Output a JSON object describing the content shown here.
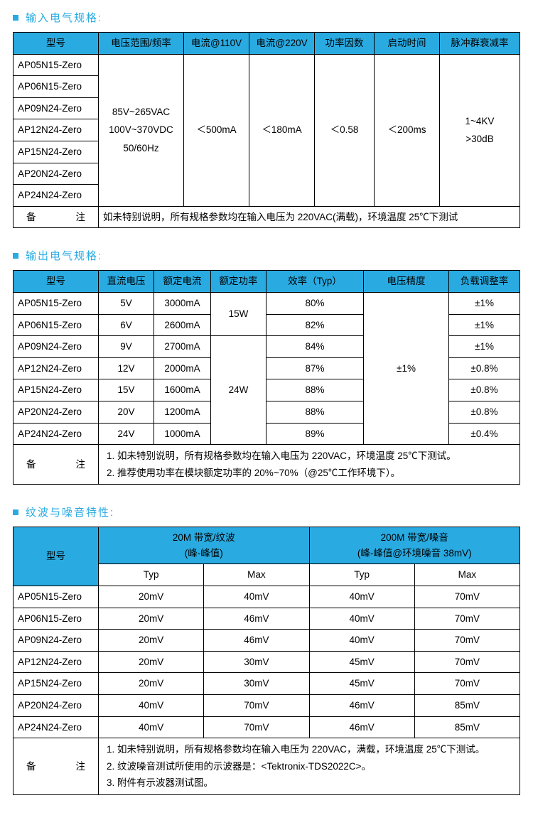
{
  "colors": {
    "accent": "#29abe2",
    "border": "#000000",
    "bg": "#ffffff"
  },
  "sections": {
    "input": {
      "title": "输入电气规格:",
      "headers": [
        "型号",
        "电压范围/频率",
        "电流@110V",
        "电流@220V",
        "功率因数",
        "启动时间",
        "脉冲群衰减率"
      ],
      "models": [
        "AP05N15-Zero",
        "AP06N15-Zero",
        "AP09N24-Zero",
        "AP12N24-Zero",
        "AP15N24-Zero",
        "AP20N24-Zero",
        "AP24N24-Zero"
      ],
      "voltage_range_l1": "85V~265VAC",
      "voltage_range_l2": "100V~370VDC",
      "voltage_range_l3": "50/60Hz",
      "cur110": "＜500mA",
      "cur220": "＜180mA",
      "pf": "＜0.58",
      "startup": "＜200ms",
      "burst_l1": "1~4KV",
      "burst_l2": ">30dB",
      "note_label": "备注",
      "note_text": "如未特别说明，所有规格参数均在输入电压为 220VAC(满载)，环境温度 25℃下测试"
    },
    "output": {
      "title": "输出电气规格:",
      "headers": [
        "型号",
        "直流电压",
        "额定电流",
        "额定功率",
        "效率（Typ）",
        "电压精度",
        "负载调整率"
      ],
      "rows": [
        {
          "model": "AP05N15-Zero",
          "dc": "5V",
          "cur": "3000mA",
          "eff": "80%",
          "load": "±1%"
        },
        {
          "model": "AP06N15-Zero",
          "dc": "6V",
          "cur": "2600mA",
          "eff": "82%",
          "load": "±1%"
        },
        {
          "model": "AP09N24-Zero",
          "dc": "9V",
          "cur": "2700mA",
          "eff": "84%",
          "load": "±1%"
        },
        {
          "model": "AP12N24-Zero",
          "dc": "12V",
          "cur": "2000mA",
          "eff": "87%",
          "load": "±0.8%"
        },
        {
          "model": "AP15N24-Zero",
          "dc": "15V",
          "cur": "1600mA",
          "eff": "88%",
          "load": "±0.8%"
        },
        {
          "model": "AP20N24-Zero",
          "dc": "20V",
          "cur": "1200mA",
          "eff": "88%",
          "load": "±0.8%"
        },
        {
          "model": "AP24N24-Zero",
          "dc": "24V",
          "cur": "1000mA",
          "eff": "89%",
          "load": "±0.4%"
        }
      ],
      "rated_power_1": "15W",
      "rated_power_2": "24W",
      "v_accuracy": "±1%",
      "note_label": "备注",
      "note1": "如未特别说明，所有规格参数均在输入电压为 220VAC，环境温度 25℃下测试。",
      "note2": "推荐使用功率在模块额定功率的 20%~70%（@25℃工作环境下）。"
    },
    "ripple": {
      "title": "纹波与噪音特性:",
      "h_model": "型号",
      "h_20m_l1": "20M 带宽/纹波",
      "h_20m_l2": "(峰-峰值)",
      "h_200m_l1": "200M 带宽/噪音",
      "h_200m_l2": "(峰-峰值@环境噪音 38mV)",
      "sub_typ": "Typ",
      "sub_max": "Max",
      "rows": [
        {
          "model": "AP05N15-Zero",
          "t20": "20mV",
          "m20": "40mV",
          "t200": "40mV",
          "m200": "70mV"
        },
        {
          "model": "AP06N15-Zero",
          "t20": "20mV",
          "m20": "46mV",
          "t200": "40mV",
          "m200": "70mV"
        },
        {
          "model": "AP09N24-Zero",
          "t20": "20mV",
          "m20": "46mV",
          "t200": "40mV",
          "m200": "70mV"
        },
        {
          "model": "AP12N24-Zero",
          "t20": "20mV",
          "m20": "30mV",
          "t200": "45mV",
          "m200": "70mV"
        },
        {
          "model": "AP15N24-Zero",
          "t20": "20mV",
          "m20": "30mV",
          "t200": "45mV",
          "m200": "70mV"
        },
        {
          "model": "AP20N24-Zero",
          "t20": "40mV",
          "m20": "70mV",
          "t200": "46mV",
          "m200": "85mV"
        },
        {
          "model": "AP24N24-Zero",
          "t20": "40mV",
          "m20": "70mV",
          "t200": "46mV",
          "m200": "85mV"
        }
      ],
      "note_label": "备注",
      "note1": "如未特别说明，所有规格参数均在输入电压为 220VAC，满载，环境温度 25℃下测试。",
      "note2": "纹波噪音测试所使用的示波器是：<Tektronix-TDS2022C>。",
      "note3": "附件有示波器测试图。"
    }
  }
}
